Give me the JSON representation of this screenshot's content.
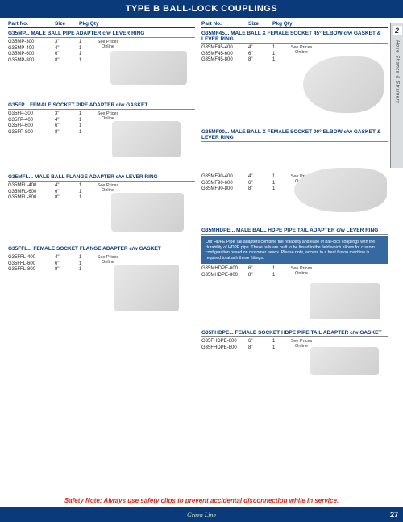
{
  "header_title": "TYPE B BALL-LOCK COUPLINGS",
  "side_tab": {
    "number": "2",
    "label": "Hose Shanks & Strainers"
  },
  "column_headers": [
    "Part No.",
    "Size",
    "Pkg Qty"
  ],
  "see_prices_label": "See Prices Online",
  "left_sections": [
    {
      "title": "G35MP... MALE BALL PIPE ADAPTER c/w LEVER RING",
      "rows": [
        {
          "part": "G35MP-300",
          "size": "3\"",
          "qty": "1"
        },
        {
          "part": "G35MP-400",
          "size": "4\"",
          "qty": "1"
        },
        {
          "part": "G35MP-600",
          "size": "6\"",
          "qty": "1"
        },
        {
          "part": "G35MP-800",
          "size": "8\"",
          "qty": "1"
        }
      ]
    },
    {
      "title": "G35FP... FEMALE SOCKET PIPE ADAPTER c/w GASKET",
      "rows": [
        {
          "part": "G35FP-300",
          "size": "3\"",
          "qty": "1"
        },
        {
          "part": "G35FP-400",
          "size": "4\"",
          "qty": "1"
        },
        {
          "part": "G35FP-600",
          "size": "6\"",
          "qty": "1"
        },
        {
          "part": "G35FP-800",
          "size": "8\"",
          "qty": "1"
        }
      ]
    },
    {
      "title": "G35MFL... MALE BALL FLANGE ADAPTER c/w LEVER RING",
      "rows": [
        {
          "part": "G35MFL-400",
          "size": "4\"",
          "qty": "1"
        },
        {
          "part": "G35MFL-600",
          "size": "6\"",
          "qty": "1"
        },
        {
          "part": "G35MFL-800",
          "size": "8\"",
          "qty": "1"
        }
      ]
    },
    {
      "title": "G35FFL... FEMALE SOCKET FLANGE ADAPTER c/w GASKET",
      "rows": [
        {
          "part": "G35FFL-400",
          "size": "4\"",
          "qty": "1"
        },
        {
          "part": "G35FFL-600",
          "size": "6\"",
          "qty": "1"
        },
        {
          "part": "G35FFL-800",
          "size": "8\"",
          "qty": "1"
        }
      ]
    }
  ],
  "right_sections": [
    {
      "title": "G35MF45... MALE BALL X FEMALE SOCKET 45° ELBOW c/w GASKET & LEVER RING",
      "rows": [
        {
          "part": "G35MF45-400",
          "size": "4\"",
          "qty": "1"
        },
        {
          "part": "G35MF45-600",
          "size": "6\"",
          "qty": "1"
        },
        {
          "part": "G35MF45-800",
          "size": "8\"",
          "qty": "1"
        }
      ]
    },
    {
      "title": "G35MF90... MALE BALL X FEMALE SOCKET 90° ELBOW c/w GASKET & LEVER RING",
      "rows": [
        {
          "part": "G35MF90-400",
          "size": "4\"",
          "qty": "1"
        },
        {
          "part": "G35MF90-600",
          "size": "6\"",
          "qty": "1"
        },
        {
          "part": "G35MF90-800",
          "size": "8\"",
          "qty": "1"
        }
      ],
      "rows_offset": true
    },
    {
      "title": "G35MHDPE... MALE BALL HDPE PIPE TAIL ADAPTER c/w LEVER RING",
      "note": "Our HDPE Pipe Tail adapters combine the reliability and ease of ball-lock couplings with the durability of HDPE pipe. These tails are built to be fused in the field which allows for custom configuration based on customer needs. Please note, access to a heat fusion machine is required to attach these fittings.",
      "rows": [
        {
          "part": "G35MHDPE-600",
          "size": "6\"",
          "qty": "1"
        },
        {
          "part": "G35MHDPE-800",
          "size": "8\"",
          "qty": "1"
        }
      ]
    },
    {
      "title": "G35FHDPE... FEMALE SOCKET HDPE PIPE TAIL ADAPTER c/w GASKET",
      "rows": [
        {
          "part": "G35FHDPE-600",
          "size": "6\"",
          "qty": "1"
        },
        {
          "part": "G35FHDPE-800",
          "size": "8\"",
          "qty": "1"
        }
      ]
    }
  ],
  "safety_note": "Safety Note: Always use safety clips to prevent accidental disconnection while in service.",
  "footer": {
    "brand": "Green Line",
    "page": "27"
  },
  "colors": {
    "header_bg": "#0a3a7a",
    "accent": "#0a3a7a",
    "note_bg": "#35699f",
    "safety": "#d62a1a",
    "side_bg": "#d9dde0"
  }
}
